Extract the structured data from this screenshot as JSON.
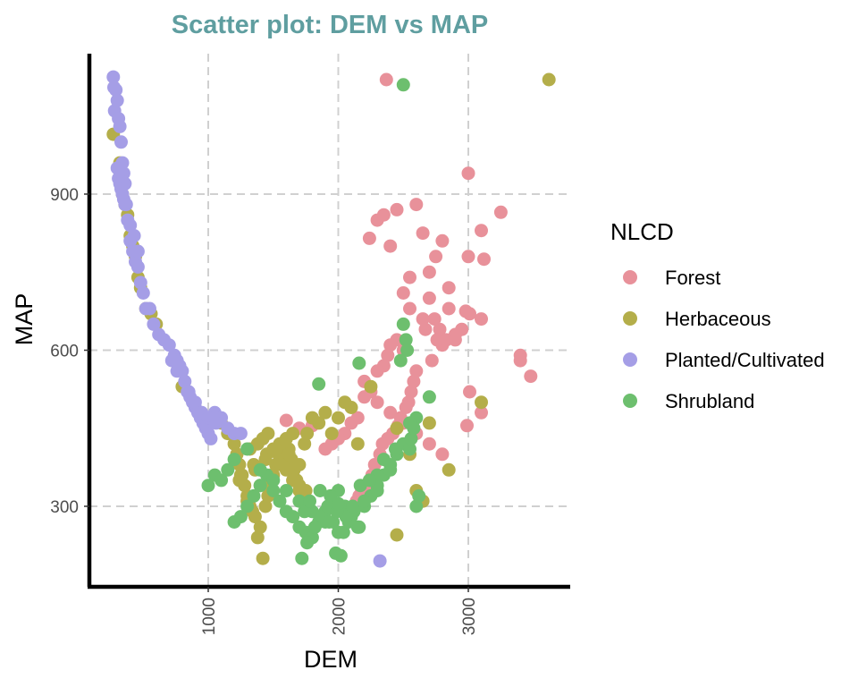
{
  "chart_data": {
    "type": "scatter",
    "title": "Scatter plot: DEM vs MAP",
    "xlabel": "DEM",
    "ylabel": "MAP",
    "xlim": [
      80,
      3700
    ],
    "ylim": [
      150,
      1160
    ],
    "xticks": [
      1000,
      2000,
      3000
    ],
    "yticks": [
      300,
      600,
      900
    ],
    "grid": true,
    "legend_title": "NLCD",
    "legend_position": "right",
    "colors": {
      "Forest": "#E8919A",
      "Herbaceous": "#B4AE4A",
      "Planted/Cultivated": "#A59EE6",
      "Shrubland": "#6DBF6E"
    },
    "series": [
      {
        "name": "Forest",
        "x": [
          2370,
          2240,
          2300,
          2350,
          2400,
          2450,
          2500,
          2550,
          2600,
          2650,
          2700,
          2750,
          2800,
          2850,
          2900,
          3000,
          3100,
          3250,
          3400,
          3480,
          3000,
          2950,
          2850,
          2800,
          2700,
          2650,
          2500,
          2450,
          2400,
          2380,
          2350,
          2300,
          2250,
          2200,
          2150,
          2100,
          2050,
          2000,
          1950,
          1900,
          2200,
          2300,
          2400,
          2500,
          2600,
          2700,
          2800,
          3100,
          3120,
          3010,
          2990,
          2900,
          2780,
          2760,
          2740,
          2720,
          2600,
          2580,
          2560,
          2540,
          2520,
          2480,
          2460,
          2420,
          2380,
          2340,
          2320,
          2280,
          2260,
          2240,
          2180,
          2160,
          2140,
          1800,
          1700,
          1600,
          2550,
          2670,
          2830,
          2980,
          3010,
          3100,
          3400
        ],
        "y": [
          1120,
          815,
          850,
          860,
          800,
          870,
          710,
          740,
          880,
          825,
          750,
          780,
          810,
          720,
          620,
          940,
          830,
          865,
          590,
          550,
          780,
          640,
          680,
          610,
          700,
          660,
          600,
          620,
          610,
          590,
          570,
          560,
          520,
          510,
          470,
          460,
          440,
          430,
          420,
          410,
          540,
          500,
          480,
          460,
          440,
          420,
          400,
          660,
          775,
          520,
          455,
          630,
          640,
          620,
          660,
          580,
          560,
          540,
          520,
          500,
          490,
          470,
          455,
          440,
          430,
          420,
          400,
          380,
          360,
          340,
          330,
          320,
          310,
          455,
          450,
          465,
          680,
          640,
          620,
          675,
          670,
          480,
          580
        ]
      },
      {
        "name": "Herbaceous",
        "x": [
          3620,
          270,
          320,
          330,
          340,
          360,
          380,
          400,
          420,
          440,
          460,
          480,
          520,
          560,
          600,
          800,
          1000,
          1100,
          1150,
          1200,
          1220,
          1240,
          1260,
          1280,
          1300,
          1320,
          1340,
          1360,
          1380,
          1400,
          1420,
          1440,
          1460,
          1480,
          1500,
          1520,
          1540,
          1560,
          1580,
          1600,
          1620,
          1640,
          1660,
          1680,
          1700,
          1720,
          1740,
          1760,
          1800,
          1850,
          1900,
          1950,
          2000,
          2050,
          2100,
          2150,
          2250,
          2450,
          2550,
          2600,
          2650,
          2700,
          2850,
          3100,
          1320,
          1380,
          1420,
          1460,
          1500,
          1550,
          1600,
          1650,
          1700,
          1750,
          1300,
          1250,
          1350,
          1450,
          1550,
          1650,
          1400,
          1480,
          1560,
          1240,
          1360,
          1440,
          1520,
          1620,
          1700,
          2450
        ],
        "y": [
          1120,
          1015,
          960,
          935,
          900,
          880,
          860,
          820,
          800,
          780,
          740,
          720,
          680,
          670,
          650,
          530,
          470,
          460,
          440,
          420,
          400,
          380,
          360,
          340,
          320,
          300,
          290,
          280,
          240,
          260,
          200,
          300,
          320,
          340,
          360,
          380,
          400,
          410,
          420,
          430,
          410,
          390,
          370,
          350,
          330,
          320,
          420,
          440,
          470,
          460,
          480,
          440,
          470,
          500,
          490,
          420,
          530,
          450,
          400,
          330,
          310,
          460,
          370,
          500,
          410,
          420,
          430,
          440,
          410,
          390,
          370,
          350,
          340,
          330,
          310,
          360,
          380,
          400,
          420,
          440,
          340,
          360,
          380,
          350,
          370,
          390,
          410,
          400,
          380,
          245
        ]
      },
      {
        "name": "Planted/Cultivated",
        "x": [
          270,
          275,
          280,
          290,
          300,
          310,
          320,
          330,
          340,
          350,
          360,
          370,
          380,
          400,
          420,
          440,
          460,
          480,
          500,
          520,
          550,
          580,
          620,
          660,
          700,
          740,
          760,
          780,
          800,
          820,
          840,
          860,
          880,
          900,
          920,
          940,
          960,
          980,
          1000,
          1020,
          1050,
          1100,
          1150,
          1200,
          1250,
          300,
          310,
          320,
          330,
          340,
          350,
          360,
          400,
          430,
          460,
          720,
          760,
          850,
          900,
          950,
          1000,
          1040,
          1060,
          2320
        ],
        "y": [
          1125,
          1105,
          1060,
          1100,
          1080,
          1045,
          1030,
          1000,
          960,
          940,
          920,
          880,
          850,
          810,
          790,
          770,
          760,
          730,
          710,
          680,
          680,
          650,
          630,
          620,
          610,
          590,
          580,
          570,
          560,
          540,
          520,
          510,
          500,
          490,
          480,
          470,
          460,
          450,
          440,
          430,
          480,
          470,
          450,
          440,
          440,
          950,
          930,
          920,
          910,
          900,
          890,
          880,
          840,
          820,
          790,
          580,
          560,
          520,
          500,
          480,
          470,
          470,
          460,
          195
        ]
      },
      {
        "name": "Shrubland",
        "x": [
          2500,
          1000,
          1050,
          1100,
          1150,
          1200,
          1250,
          1300,
          1350,
          1400,
          1450,
          1500,
          1550,
          1600,
          1650,
          1700,
          1750,
          1800,
          1850,
          1900,
          1950,
          2000,
          2050,
          2100,
          2150,
          2200,
          2250,
          2300,
          2350,
          2400,
          2450,
          2500,
          2550,
          2600,
          1200,
          1300,
          1400,
          1500,
          1600,
          1700,
          1800,
          1900,
          2000,
          2100,
          2200,
          2300,
          1720,
          1760,
          1820,
          1880,
          1920,
          1960,
          2040,
          2080,
          2120,
          2160,
          2500,
          2520,
          2530,
          2600,
          2550,
          2700,
          1850,
          2160,
          2480,
          1980,
          2020,
          1930,
          2060,
          2110,
          1940,
          2170,
          2300,
          1740,
          1780,
          1860,
          2240,
          2400,
          2350,
          2440,
          2560,
          2580,
          2620,
          1990,
          2000
        ],
        "y": [
          1110,
          340,
          360,
          350,
          370,
          270,
          280,
          300,
          320,
          340,
          360,
          330,
          310,
          290,
          280,
          260,
          250,
          240,
          270,
          290,
          310,
          330,
          300,
          280,
          260,
          300,
          320,
          340,
          360,
          380,
          400,
          420,
          410,
          300,
          390,
          410,
          370,
          350,
          330,
          310,
          290,
          270,
          250,
          290,
          310,
          330,
          200,
          230,
          260,
          280,
          300,
          270,
          250,
          270,
          290,
          260,
          650,
          620,
          600,
          470,
          460,
          510,
          535,
          575,
          580,
          210,
          205,
          270,
          280,
          300,
          320,
          340,
          360,
          290,
          310,
          330,
          350,
          370,
          390,
          410,
          430,
          450,
          320,
          290,
          305
        ]
      }
    ]
  }
}
